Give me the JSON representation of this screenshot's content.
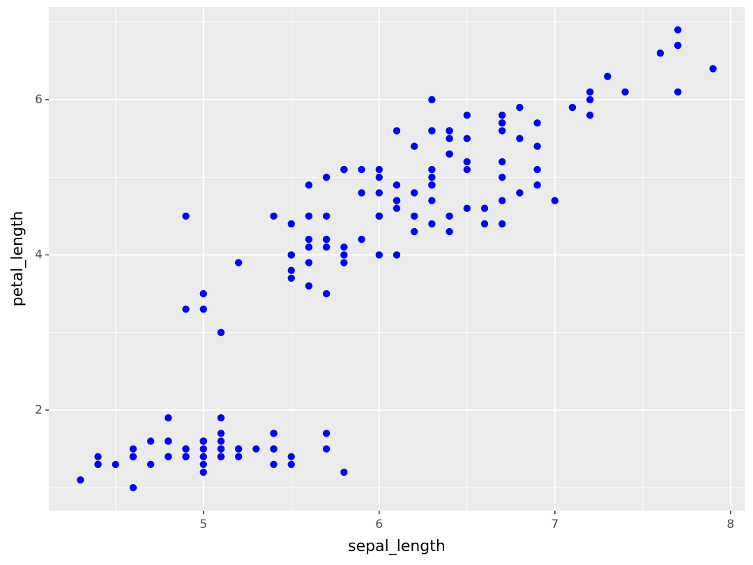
{
  "chart_data": {
    "type": "scatter",
    "x_label": "sepal_length",
    "y_label": "petal_length",
    "color": "#0000ff",
    "xlim": [
      4.12,
      8.08
    ],
    "ylim": [
      0.705,
      7.195
    ],
    "xticks": [
      5,
      6,
      7,
      8
    ],
    "yticks": [
      2,
      4,
      6
    ],
    "grid": true,
    "x": [
      5.1,
      4.9,
      4.7,
      4.6,
      5.0,
      5.4,
      4.6,
      5.0,
      4.4,
      4.9,
      5.4,
      4.8,
      4.8,
      4.3,
      5.8,
      5.7,
      5.4,
      5.1,
      5.7,
      5.1,
      5.4,
      5.1,
      4.6,
      5.1,
      4.8,
      5.0,
      5.0,
      5.2,
      5.2,
      4.7,
      4.8,
      5.4,
      5.2,
      5.5,
      4.9,
      5.0,
      5.5,
      4.9,
      4.4,
      5.1,
      5.0,
      4.5,
      4.4,
      5.0,
      5.1,
      4.8,
      5.1,
      4.6,
      5.3,
      5.0,
      7.0,
      6.4,
      6.9,
      5.5,
      6.5,
      5.7,
      6.3,
      4.9,
      6.6,
      5.2,
      5.0,
      5.9,
      6.0,
      6.1,
      5.6,
      6.7,
      5.6,
      5.8,
      6.2,
      5.6,
      5.9,
      6.1,
      6.3,
      6.1,
      6.4,
      6.6,
      6.8,
      6.7,
      6.0,
      5.7,
      5.5,
      5.5,
      5.8,
      6.0,
      5.4,
      6.0,
      6.7,
      6.3,
      5.6,
      5.5,
      5.5,
      6.1,
      5.8,
      5.0,
      5.6,
      5.7,
      5.7,
      6.2,
      5.1,
      5.7,
      6.3,
      5.8,
      7.1,
      6.3,
      6.5,
      7.6,
      4.9,
      7.3,
      6.7,
      7.2,
      6.5,
      6.4,
      6.8,
      5.7,
      5.8,
      6.4,
      6.5,
      7.7,
      7.7,
      6.0,
      6.9,
      5.6,
      7.7,
      6.3,
      6.7,
      7.2,
      6.2,
      6.1,
      6.4,
      7.2,
      7.4,
      7.9,
      6.4,
      6.3,
      6.1,
      7.7,
      6.3,
      6.4,
      6.0,
      6.9,
      6.7,
      6.9,
      5.8,
      6.8,
      6.7,
      6.7,
      6.3,
      6.5,
      6.2,
      5.9
    ],
    "values": [
      1.4,
      1.4,
      1.3,
      1.5,
      1.4,
      1.7,
      1.4,
      1.5,
      1.4,
      1.5,
      1.5,
      1.6,
      1.4,
      1.1,
      1.2,
      1.5,
      1.3,
      1.4,
      1.7,
      1.5,
      1.7,
      1.5,
      1.0,
      1.7,
      1.9,
      1.6,
      1.6,
      1.5,
      1.4,
      1.6,
      1.6,
      1.5,
      1.5,
      1.4,
      1.5,
      1.2,
      1.3,
      1.4,
      1.3,
      1.5,
      1.3,
      1.3,
      1.3,
      1.6,
      1.9,
      1.4,
      1.6,
      1.4,
      1.5,
      1.4,
      4.7,
      4.5,
      4.9,
      4.0,
      4.6,
      4.5,
      4.7,
      3.3,
      4.6,
      3.9,
      3.5,
      4.2,
      4.0,
      4.7,
      3.6,
      4.4,
      4.5,
      4.1,
      4.5,
      3.9,
      4.8,
      4.0,
      4.9,
      4.7,
      4.3,
      4.4,
      4.8,
      5.0,
      4.5,
      3.5,
      3.8,
      3.7,
      3.9,
      5.1,
      4.5,
      4.5,
      4.7,
      4.4,
      4.1,
      4.0,
      4.4,
      4.6,
      4.0,
      3.3,
      4.2,
      4.2,
      4.2,
      4.3,
      3.0,
      4.1,
      6.0,
      5.1,
      5.9,
      5.6,
      5.8,
      6.6,
      4.5,
      6.3,
      5.8,
      6.1,
      5.1,
      5.3,
      5.5,
      5.0,
      5.1,
      5.3,
      5.5,
      6.7,
      6.9,
      5.0,
      5.7,
      4.9,
      6.7,
      4.9,
      5.7,
      6.0,
      4.8,
      4.9,
      5.6,
      5.8,
      6.1,
      6.4,
      5.6,
      5.1,
      5.6,
      6.1,
      5.6,
      5.5,
      4.8,
      5.4,
      5.6,
      5.1,
      5.1,
      5.9,
      5.7,
      5.2,
      5.0,
      5.2,
      5.4,
      5.1
    ]
  }
}
